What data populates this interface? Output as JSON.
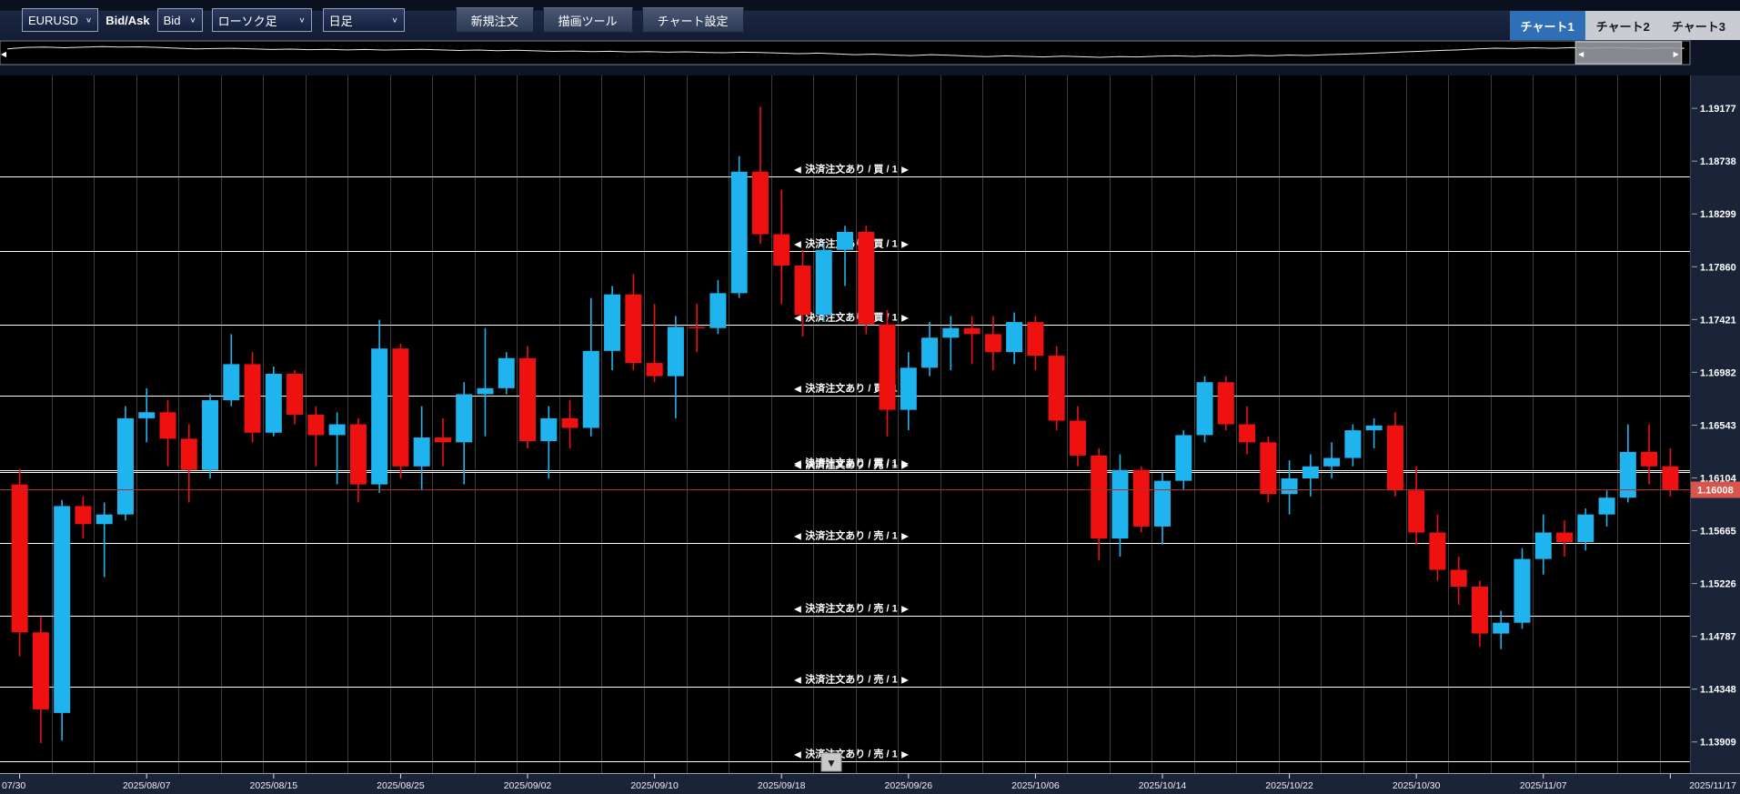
{
  "icons": {
    "chevron_down": "∨",
    "left_arrow": "◀",
    "right_arrow": "▶",
    "down_triangle": "▼"
  },
  "toolbar": {
    "symbol": "EURUSD",
    "bid_ask_label": "Bid/Ask",
    "price_side": "Bid",
    "chart_type": "ローソク足",
    "timeframe": "日足",
    "new_order": "新規注文",
    "draw_tools": "描画ツール",
    "chart_settings": "チャート設定",
    "tabs": [
      {
        "label": "チャート1",
        "active": true
      },
      {
        "label": "チャート2",
        "active": false
      },
      {
        "label": "チャート3",
        "active": false
      }
    ]
  },
  "overview": {
    "points": [
      0.3,
      0.22,
      0.2,
      0.24,
      0.21,
      0.18,
      0.2,
      0.19,
      0.22,
      0.26,
      0.3,
      0.28,
      0.27,
      0.3,
      0.33,
      0.31,
      0.34,
      0.32,
      0.35,
      0.33,
      0.36,
      0.34,
      0.32,
      0.35,
      0.38,
      0.36,
      0.39,
      0.37,
      0.4,
      0.43,
      0.41,
      0.44,
      0.42,
      0.46,
      0.44,
      0.47,
      0.45,
      0.48,
      0.5,
      0.47,
      0.49,
      0.52,
      0.55,
      0.52,
      0.56,
      0.6,
      0.57,
      0.62,
      0.65,
      0.6,
      0.63,
      0.67,
      0.7,
      0.66,
      0.69,
      0.72,
      0.68,
      0.71,
      0.74,
      0.7,
      0.72,
      0.68,
      0.66,
      0.69,
      0.65,
      0.67,
      0.63,
      0.66,
      0.62,
      0.64,
      0.6,
      0.57,
      0.54,
      0.5,
      0.46,
      0.42,
      0.38,
      0.35,
      0.3,
      0.26,
      0.28,
      0.24,
      0.27,
      0.23,
      0.26,
      0.22,
      0.25,
      0.28,
      0.24,
      0.27
    ],
    "viewport": {
      "start": 0.932,
      "end": 0.995
    }
  },
  "chart_data": {
    "type": "candlestick",
    "symbol": "EURUSD",
    "timeframe": "日足",
    "price_side": "Bid",
    "price_axis_ticks": [
      "1.19177",
      "1.18738",
      "1.18299",
      "1.17860",
      "1.17421",
      "1.16982",
      "1.16543",
      "1.16104",
      "1.15665",
      "1.15226",
      "1.14787",
      "1.14348",
      "1.13909"
    ],
    "price_range": {
      "top": 1.1945,
      "bottom": 1.1365
    },
    "x_labels": [
      {
        "index": 0,
        "label": "07/30"
      },
      {
        "index": 6,
        "label": "2025/08/07"
      },
      {
        "index": 12,
        "label": "2025/08/15"
      },
      {
        "index": 18,
        "label": "2025/08/25"
      },
      {
        "index": 24,
        "label": "2025/09/02"
      },
      {
        "index": 30,
        "label": "2025/09/10"
      },
      {
        "index": 36,
        "label": "2025/09/18"
      },
      {
        "index": 42,
        "label": "2025/09/26"
      },
      {
        "index": 48,
        "label": "2025/10/06"
      },
      {
        "index": 54,
        "label": "2025/10/14"
      },
      {
        "index": 60,
        "label": "2025/10/22"
      },
      {
        "index": 66,
        "label": "2025/10/30"
      },
      {
        "index": 72,
        "label": "2025/11/07"
      },
      {
        "index": 78,
        "label": "2025/11/17"
      }
    ],
    "candles": [
      [
        1.1605,
        1.1618,
        1.1462,
        1.1482
      ],
      [
        1.1482,
        1.1495,
        1.139,
        1.1418
      ],
      [
        1.1415,
        1.1592,
        1.1392,
        1.1587
      ],
      [
        1.1587,
        1.1595,
        1.156,
        1.1572
      ],
      [
        1.1572,
        1.159,
        1.1528,
        1.158
      ],
      [
        1.158,
        1.167,
        1.1575,
        1.166
      ],
      [
        1.166,
        1.1685,
        1.164,
        1.1665
      ],
      [
        1.1665,
        1.1675,
        1.162,
        1.1643
      ],
      [
        1.1643,
        1.1655,
        1.159,
        1.1617
      ],
      [
        1.1617,
        1.168,
        1.161,
        1.1675
      ],
      [
        1.1675,
        1.173,
        1.167,
        1.1705
      ],
      [
        1.1705,
        1.1715,
        1.164,
        1.1648
      ],
      [
        1.1648,
        1.1703,
        1.1645,
        1.1697
      ],
      [
        1.1697,
        1.17,
        1.1655,
        1.1663
      ],
      [
        1.1663,
        1.167,
        1.162,
        1.1646
      ],
      [
        1.1646,
        1.1665,
        1.1605,
        1.1655
      ],
      [
        1.1655,
        1.166,
        1.159,
        1.1605
      ],
      [
        1.1605,
        1.1742,
        1.1598,
        1.1718
      ],
      [
        1.1718,
        1.1722,
        1.161,
        1.162
      ],
      [
        1.162,
        1.167,
        1.16,
        1.1644
      ],
      [
        1.1644,
        1.166,
        1.162,
        1.164
      ],
      [
        1.164,
        1.169,
        1.1605,
        1.168
      ],
      [
        1.168,
        1.1735,
        1.1645,
        1.1685
      ],
      [
        1.1685,
        1.1715,
        1.168,
        1.171
      ],
      [
        1.171,
        1.172,
        1.1635,
        1.1641
      ],
      [
        1.1641,
        1.167,
        1.161,
        1.166
      ],
      [
        1.166,
        1.1675,
        1.1635,
        1.1652
      ],
      [
        1.1652,
        1.176,
        1.1645,
        1.1716
      ],
      [
        1.1716,
        1.177,
        1.17,
        1.1763
      ],
      [
        1.1763,
        1.178,
        1.17,
        1.1706
      ],
      [
        1.1706,
        1.1755,
        1.169,
        1.1695
      ],
      [
        1.1695,
        1.1745,
        1.166,
        1.1736
      ],
      [
        1.1736,
        1.1755,
        1.1715,
        1.1735
      ],
      [
        1.1735,
        1.1775,
        1.173,
        1.1764
      ],
      [
        1.1764,
        1.1878,
        1.176,
        1.1865
      ],
      [
        1.1865,
        1.1919,
        1.1805,
        1.1813
      ],
      [
        1.1813,
        1.185,
        1.1755,
        1.1787
      ],
      [
        1.1787,
        1.18,
        1.1728,
        1.1746
      ],
      [
        1.1746,
        1.1805,
        1.174,
        1.18
      ],
      [
        1.18,
        1.182,
        1.177,
        1.1815
      ],
      [
        1.1815,
        1.182,
        1.173,
        1.1738
      ],
      [
        1.1738,
        1.175,
        1.1645,
        1.1667
      ],
      [
        1.1667,
        1.1715,
        1.165,
        1.1702
      ],
      [
        1.1702,
        1.174,
        1.1695,
        1.1727
      ],
      [
        1.1727,
        1.1745,
        1.17,
        1.1735
      ],
      [
        1.1735,
        1.1745,
        1.1705,
        1.173
      ],
      [
        1.173,
        1.1745,
        1.17,
        1.1715
      ],
      [
        1.1715,
        1.1748,
        1.1705,
        1.174
      ],
      [
        1.174,
        1.1745,
        1.17,
        1.1712
      ],
      [
        1.1712,
        1.172,
        1.165,
        1.1658
      ],
      [
        1.1658,
        1.167,
        1.162,
        1.1629
      ],
      [
        1.1629,
        1.1635,
        1.1542,
        1.156
      ],
      [
        1.156,
        1.163,
        1.1545,
        1.1617
      ],
      [
        1.1617,
        1.162,
        1.1565,
        1.157
      ],
      [
        1.157,
        1.1615,
        1.1555,
        1.1608
      ],
      [
        1.1608,
        1.165,
        1.16,
        1.1646
      ],
      [
        1.1646,
        1.1695,
        1.164,
        1.169
      ],
      [
        1.169,
        1.1695,
        1.165,
        1.1655
      ],
      [
        1.1655,
        1.167,
        1.163,
        1.164
      ],
      [
        1.164,
        1.1645,
        1.159,
        1.1597
      ],
      [
        1.1597,
        1.1625,
        1.158,
        1.161
      ],
      [
        1.161,
        1.163,
        1.1595,
        1.162
      ],
      [
        1.162,
        1.164,
        1.161,
        1.1627
      ],
      [
        1.1627,
        1.1655,
        1.162,
        1.165
      ],
      [
        1.165,
        1.166,
        1.1635,
        1.1654
      ],
      [
        1.1654,
        1.1665,
        1.1595,
        1.16
      ],
      [
        1.16,
        1.162,
        1.1555,
        1.1565
      ],
      [
        1.1565,
        1.158,
        1.1525,
        1.1534
      ],
      [
        1.1534,
        1.1545,
        1.1505,
        1.152
      ],
      [
        1.152,
        1.1525,
        1.147,
        1.1481
      ],
      [
        1.1481,
        1.15,
        1.1468,
        1.149
      ],
      [
        1.149,
        1.1552,
        1.1485,
        1.1543
      ],
      [
        1.1543,
        1.158,
        1.153,
        1.1565
      ],
      [
        1.1565,
        1.1575,
        1.1545,
        1.1557
      ],
      [
        1.1557,
        1.1585,
        1.155,
        1.158
      ],
      [
        1.158,
        1.16,
        1.157,
        1.1594
      ],
      [
        1.1594,
        1.1655,
        1.159,
        1.1632
      ],
      [
        1.1632,
        1.1655,
        1.1605,
        1.162
      ],
      [
        1.162,
        1.1635,
        1.1595,
        1.16008
      ]
    ],
    "current_price": {
      "value": 1.16008,
      "label": "1.16008"
    },
    "order_lines": [
      {
        "price": 1.1861,
        "side": "買",
        "label": "決済注文あり / 買 / 1"
      },
      {
        "price": 1.1799,
        "side": "買",
        "label": "決済注文あり / 買 / 1"
      },
      {
        "price": 1.1738,
        "side": "買",
        "label": "決済注文あり / 買 / 1"
      },
      {
        "price": 1.1679,
        "side": "買",
        "label": "決済注文あり / 買 / 1"
      },
      {
        "price": 1.1617,
        "side": "買",
        "label": "決済注文あり / 買 / 1"
      },
      {
        "price": 1.1615,
        "side": "売",
        "label": "決済注文あり / 売 / 1"
      },
      {
        "price": 1.1556,
        "side": "売",
        "label": "決済注文あり / 売 / 1"
      },
      {
        "price": 1.1496,
        "side": "売",
        "label": "決済注文あり / 売 / 1"
      },
      {
        "price": 1.1437,
        "side": "売",
        "label": "決済注文あり / 売 / 1"
      },
      {
        "price": 1.1375,
        "side": "売",
        "label": "決済注文あり / 売 / 1"
      }
    ],
    "grid": true,
    "legend_position": "none",
    "colors": {
      "bull": "#1fb4ee",
      "bear": "#ef1010",
      "order_line": "#ffffff",
      "current_price_line": "#b03028",
      "current_price_bg": "#d9544a",
      "grid": "#3c3c3c",
      "plot_bg": "#000000",
      "axis_bg": "#1a2338",
      "axis_text": "#ffffff",
      "overview_line": "#e8e8e8"
    }
  },
  "markers": {
    "scroll_down_label": "▼"
  }
}
